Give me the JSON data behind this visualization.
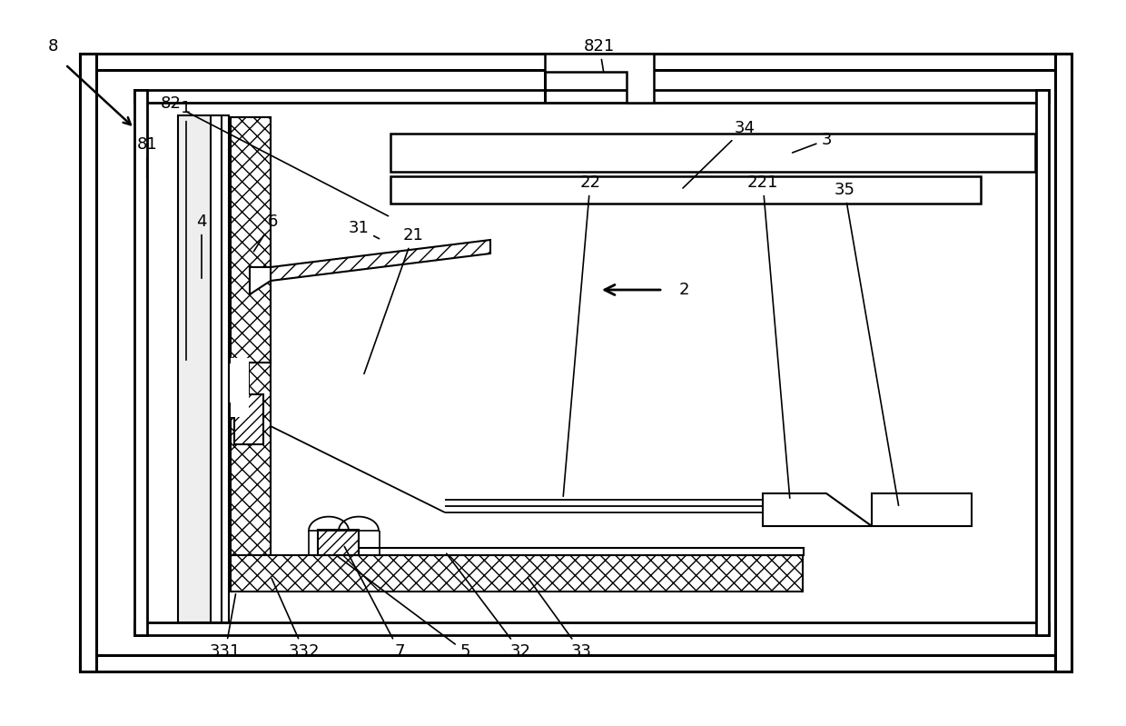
{
  "bg_color": "#ffffff",
  "lc": "#000000",
  "fig_w": 12.4,
  "fig_h": 7.99,
  "dpi": 100
}
